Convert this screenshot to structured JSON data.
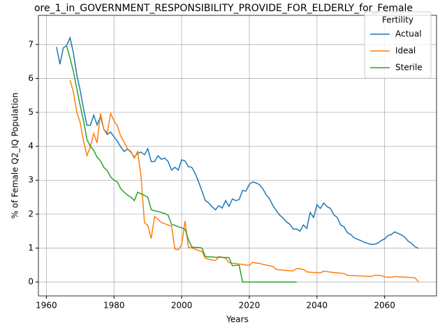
{
  "chart_data": {
    "type": "line",
    "title": "ore_1_in_GOVERNMENT_RESPONSIBILITY_PROVIDE_FOR_ELDERLY_for_Female",
    "xlabel": "Years",
    "ylabel": "% of Female Q2_IQ Population",
    "x": [
      1963,
      1964,
      1965,
      1966,
      1967,
      1968,
      1969,
      1970,
      1971,
      1972,
      1973,
      1974,
      1975,
      1976,
      1977,
      1978,
      1979,
      1980,
      1981,
      1982,
      1983,
      1984,
      1985,
      1986,
      1987,
      1988,
      1989,
      1990,
      1991,
      1992,
      1993,
      1994,
      1995,
      1996,
      1997,
      1998,
      1999,
      2000,
      2001,
      2002,
      2003,
      2004,
      2005,
      2006,
      2007,
      2008,
      2009,
      2010,
      2011,
      2012,
      2013,
      2014,
      2015,
      2016,
      2017,
      2018,
      2019,
      2020,
      2021,
      2022,
      2023,
      2024,
      2025,
      2026,
      2027,
      2028,
      2029,
      2030,
      2031,
      2032,
      2033,
      2034,
      2035,
      2036,
      2037,
      2038,
      2039,
      2040,
      2041,
      2042,
      2043,
      2044,
      2045,
      2046,
      2047,
      2048,
      2049,
      2050,
      2051,
      2052,
      2053,
      2054,
      2055,
      2056,
      2057,
      2058,
      2059,
      2060,
      2061,
      2062,
      2063,
      2064,
      2065,
      2066,
      2067,
      2068,
      2069,
      2070
    ],
    "series": [
      {
        "name": "Actual",
        "color": "#1f77b4",
        "values": [
          6.93,
          6.42,
          6.9,
          6.97,
          7.2,
          6.75,
          6.1,
          5.65,
          5.1,
          4.62,
          4.62,
          4.92,
          4.63,
          4.88,
          4.5,
          4.35,
          4.42,
          4.28,
          4.15,
          3.98,
          3.85,
          3.92,
          3.83,
          3.68,
          3.8,
          3.83,
          3.75,
          3.93,
          3.55,
          3.55,
          3.72,
          3.62,
          3.65,
          3.55,
          3.3,
          3.38,
          3.3,
          3.6,
          3.57,
          3.4,
          3.38,
          3.2,
          2.95,
          2.68,
          2.4,
          2.33,
          2.22,
          2.13,
          2.25,
          2.18,
          2.4,
          2.23,
          2.45,
          2.4,
          2.43,
          2.7,
          2.68,
          2.88,
          2.95,
          2.92,
          2.87,
          2.75,
          2.57,
          2.45,
          2.25,
          2.1,
          1.97,
          1.88,
          1.77,
          1.7,
          1.56,
          1.56,
          1.5,
          1.68,
          1.58,
          2.05,
          1.9,
          2.28,
          2.17,
          2.33,
          2.22,
          2.17,
          1.98,
          1.9,
          1.68,
          1.63,
          1.45,
          1.4,
          1.3,
          1.26,
          1.22,
          1.17,
          1.14,
          1.11,
          1.11,
          1.15,
          1.22,
          1.27,
          1.37,
          1.4,
          1.48,
          1.43,
          1.39,
          1.32,
          1.2,
          1.14,
          1.04,
          0.99
        ]
      },
      {
        "name": "Ideal",
        "color": "#ff7f0e",
        "values": [
          null,
          null,
          null,
          null,
          5.95,
          5.6,
          5.0,
          4.7,
          4.15,
          3.73,
          3.98,
          4.38,
          4.1,
          4.97,
          4.5,
          4.4,
          4.97,
          4.75,
          4.6,
          4.3,
          4.12,
          3.93,
          3.85,
          3.65,
          3.85,
          3.1,
          1.75,
          1.67,
          1.28,
          1.93,
          1.85,
          1.75,
          1.72,
          1.68,
          1.65,
          0.97,
          0.95,
          1.1,
          1.8,
          1.02,
          1.0,
          0.97,
          0.93,
          0.9,
          0.7,
          0.67,
          0.65,
          0.63,
          0.75,
          0.73,
          0.7,
          0.57,
          0.55,
          0.55,
          0.53,
          0.52,
          0.5,
          0.49,
          0.58,
          0.56,
          0.55,
          0.52,
          0.5,
          0.48,
          0.46,
          0.37,
          0.36,
          0.35,
          0.34,
          0.33,
          0.33,
          0.4,
          0.39,
          0.37,
          0.3,
          0.29,
          0.28,
          0.28,
          0.27,
          0.32,
          0.31,
          0.29,
          0.28,
          0.27,
          0.26,
          0.25,
          0.2,
          0.19,
          0.19,
          0.18,
          0.18,
          0.17,
          0.17,
          0.16,
          0.2,
          0.2,
          0.19,
          0.15,
          0.14,
          0.14,
          0.16,
          0.15,
          0.15,
          0.14,
          0.14,
          0.13,
          0.12,
          0.01
        ]
      },
      {
        "name": "Sterile",
        "color": "#2ca02c",
        "values": [
          null,
          null,
          null,
          6.95,
          6.6,
          6.2,
          5.7,
          5.2,
          4.75,
          4.2,
          4.0,
          3.88,
          3.68,
          3.57,
          3.38,
          3.28,
          3.1,
          3.0,
          2.95,
          2.75,
          2.65,
          2.56,
          2.5,
          2.4,
          2.65,
          2.6,
          2.55,
          2.5,
          2.13,
          2.1,
          2.08,
          2.05,
          2.02,
          1.97,
          1.7,
          1.67,
          1.63,
          1.6,
          1.55,
          1.25,
          1.03,
          1.02,
          1.02,
          1.0,
          0.75,
          0.74,
          0.74,
          0.73,
          0.73,
          0.73,
          0.72,
          0.72,
          0.48,
          0.49,
          0.5,
          0,
          0,
          0,
          0,
          0,
          0,
          0,
          0,
          0,
          0,
          0,
          0,
          0,
          0,
          0,
          0,
          0,
          null,
          null,
          null,
          null,
          null,
          null,
          null,
          null,
          null,
          null,
          null,
          null,
          null,
          null,
          null,
          null,
          null,
          null,
          null,
          null,
          null,
          null,
          null,
          null,
          null,
          null,
          null,
          null,
          null,
          null,
          null,
          null,
          null,
          null,
          null,
          null
        ]
      }
    ],
    "xlim": [
      1957.65,
      2075.35
    ],
    "ylim": [
      -0.41,
      7.86
    ],
    "xticks": [
      1960,
      1980,
      2000,
      2020,
      2040,
      2060
    ],
    "yticks": [
      0,
      1,
      2,
      3,
      4,
      5,
      6,
      7
    ],
    "grid": true,
    "legend_title": "Fertility",
    "legend_loc": "upper right"
  }
}
